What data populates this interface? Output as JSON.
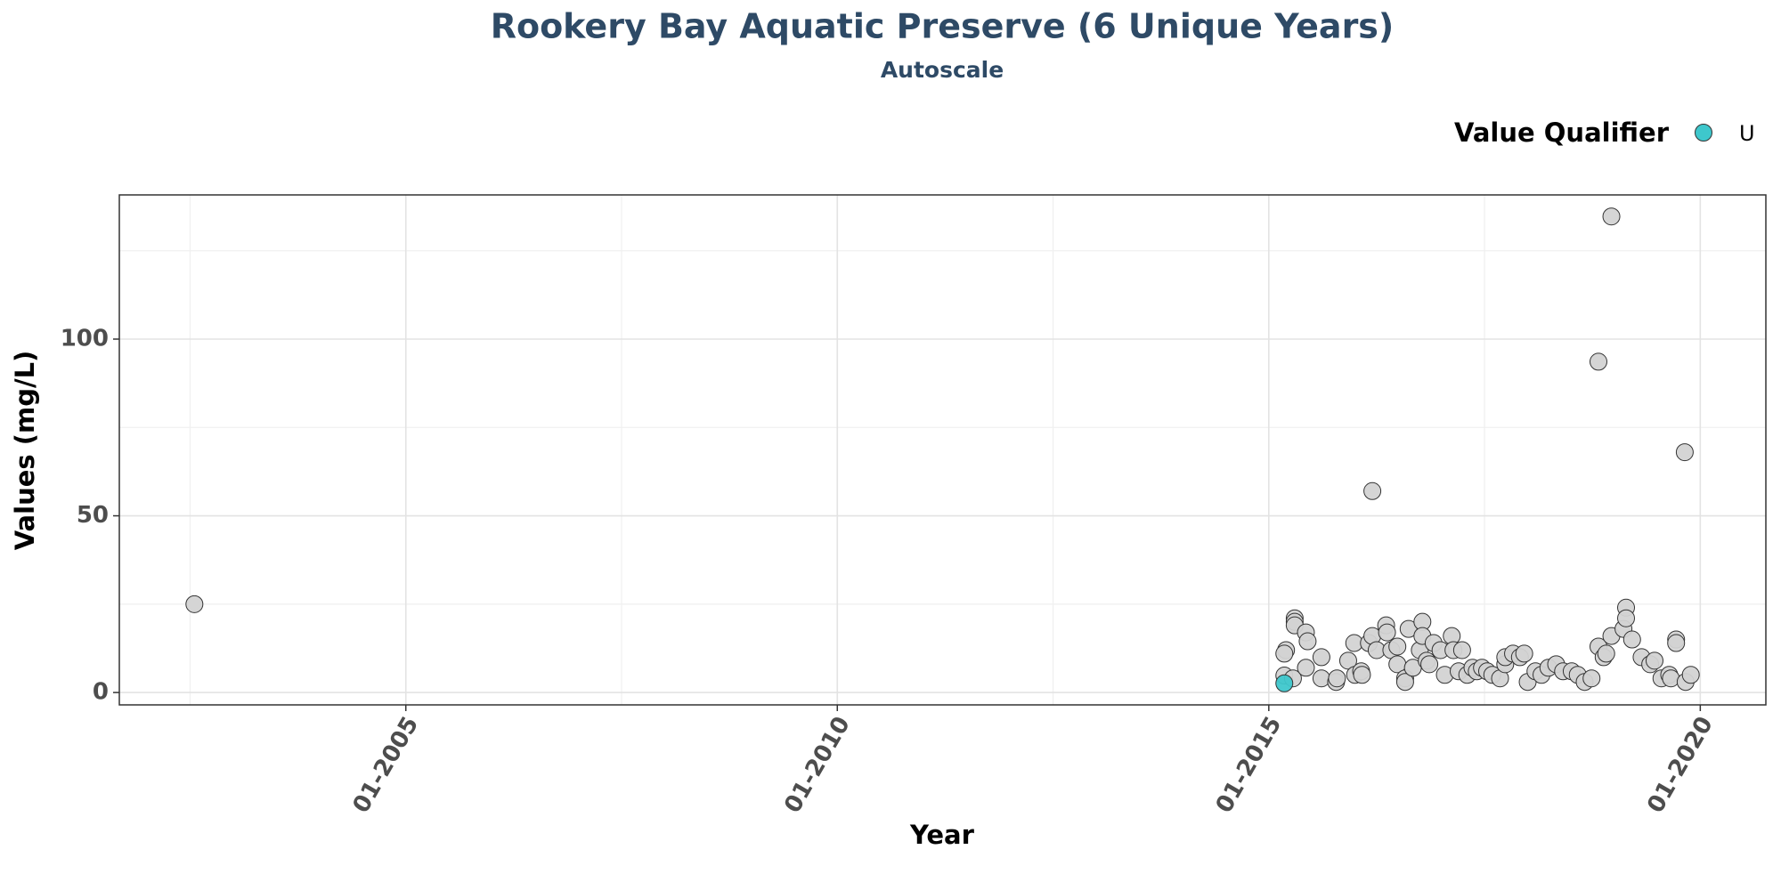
{
  "chart_data": {
    "type": "scatter",
    "title": "Rookery Bay Aquatic Preserve (6 Unique Years)",
    "subtitle": "Autoscale",
    "x_label": "Year",
    "y_label": "Values (mg/L)",
    "legend_title": "Value Qualifier",
    "legend": "top-right",
    "grid": true,
    "xlim": [
      2001.68,
      2020.76
    ],
    "ylim": [
      -3.5,
      140.8
    ],
    "xticks": [
      {
        "value": 2005,
        "label": "01-2005"
      },
      {
        "value": 2010,
        "label": "01-2010"
      },
      {
        "value": 2015,
        "label": "01-2015"
      },
      {
        "value": 2020,
        "label": "01-2020"
      }
    ],
    "yticks": [
      0,
      50,
      100
    ],
    "minor_xticks": [
      2002.5,
      2007.5,
      2012.5,
      2017.5
    ],
    "minor_yticks": [
      25,
      75,
      125
    ],
    "series": [
      {
        "color": "#d3d3d3",
        "x": [
          2002.55,
          2015.18,
          2015.2,
          2015.18,
          2015.28,
          2015.3,
          2015.3,
          2015.3,
          2015.43,
          2015.45,
          2015.43,
          2015.61,
          2015.61,
          2015.78,
          2015.79,
          2015.92,
          2015.99,
          2016.0,
          2016.07,
          2016.08,
          2016.16,
          2016.2,
          2016.25,
          2016.2,
          2016.36,
          2016.37,
          2016.42,
          2016.49,
          2016.49,
          2016.58,
          2016.58,
          2016.62,
          2016.67,
          2016.75,
          2016.78,
          2016.78,
          2016.83,
          2016.86,
          2016.91,
          2016.99,
          2017.04,
          2017.12,
          2017.14,
          2017.2,
          2017.24,
          2017.3,
          2017.36,
          2017.41,
          2017.47,
          2017.53,
          2017.59,
          2017.68,
          2017.74,
          2017.74,
          2017.83,
          2017.91,
          2017.96,
          2018.0,
          2018.09,
          2018.16,
          2018.24,
          2018.33,
          2018.41,
          2018.51,
          2018.58,
          2018.66,
          2018.74,
          2018.82,
          2018.82,
          2018.88,
          2018.91,
          2018.97,
          2018.97,
          2019.11,
          2019.14,
          2019.14,
          2019.21,
          2019.32,
          2019.42,
          2019.47,
          2019.55,
          2019.64,
          2019.66,
          2019.72,
          2019.72,
          2019.82,
          2019.83,
          2019.89
        ],
        "values": [
          25,
          4.8,
          12,
          11,
          4,
          21,
          20,
          19,
          17,
          14.5,
          7,
          10,
          4,
          3,
          4,
          9,
          14,
          5,
          6,
          5,
          14,
          16,
          12,
          57,
          19,
          17,
          12,
          8,
          13,
          4,
          3,
          18,
          7,
          12,
          20,
          16,
          9,
          8,
          14,
          12,
          5,
          16,
          12,
          6,
          12,
          5,
          7,
          6,
          7,
          6,
          5,
          4,
          8,
          10,
          11,
          10,
          11,
          3,
          6,
          5,
          7,
          8,
          6,
          6,
          5,
          3,
          4,
          13,
          93.6,
          10,
          11,
          16,
          134.7,
          18,
          24,
          21,
          15,
          10,
          8,
          9,
          4,
          5,
          4,
          15,
          14,
          68,
          3,
          5
        ]
      },
      {
        "name": "U",
        "color": "#3ec7cc",
        "x": [
          2015.18
        ],
        "values": [
          2.6
        ]
      }
    ]
  }
}
